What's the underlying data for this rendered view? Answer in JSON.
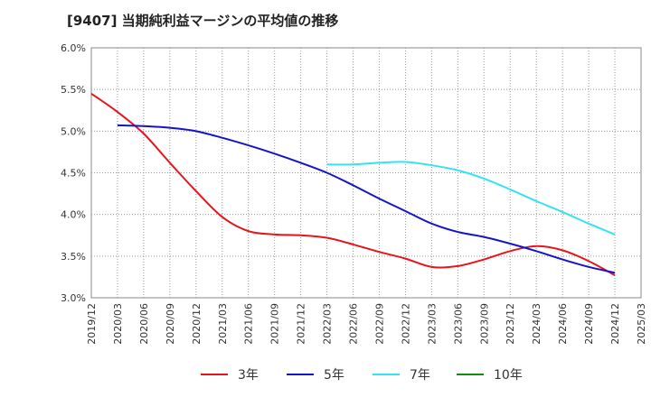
{
  "chart_data": {
    "type": "line",
    "title": "[9407]  当期純利益マージンの平均値の推移",
    "xlabel": "",
    "ylabel": "",
    "ylim": [
      3.0,
      6.0
    ],
    "y_ticks": [
      "6.0%",
      "5.5%",
      "5.0%",
      "4.5%",
      "4.0%",
      "3.5%",
      "3.0%"
    ],
    "y_tick_values": [
      6.0,
      5.5,
      5.0,
      4.5,
      4.0,
      3.5,
      3.0
    ],
    "x_ticks": [
      "2019/12",
      "2020/03",
      "2020/06",
      "2020/09",
      "2020/12",
      "2021/03",
      "2021/06",
      "2021/09",
      "2021/12",
      "2022/03",
      "2022/06",
      "2022/09",
      "2022/12",
      "2023/03",
      "2023/06",
      "2023/09",
      "2023/12",
      "2024/03",
      "2024/06",
      "2024/09",
      "2024/12",
      "2025/03"
    ],
    "grid": true,
    "legend_position": "bottom",
    "series": [
      {
        "name": "3年",
        "color": "#e8141b",
        "x": [
          "2019/12",
          "2020/03",
          "2020/06",
          "2020/09",
          "2020/12",
          "2021/03",
          "2021/06",
          "2021/09",
          "2021/12",
          "2022/03",
          "2022/06",
          "2022/09",
          "2022/12",
          "2023/03",
          "2023/06",
          "2023/09",
          "2023/12",
          "2024/03",
          "2024/06",
          "2024/09",
          "2024/12"
        ],
        "values": [
          5.45,
          5.23,
          4.97,
          4.62,
          4.28,
          3.97,
          3.8,
          3.76,
          3.75,
          3.72,
          3.64,
          3.55,
          3.47,
          3.37,
          3.38,
          3.46,
          3.56,
          3.62,
          3.57,
          3.44,
          3.27
        ]
      },
      {
        "name": "5年",
        "color": "#1515c8",
        "x": [
          "2020/03",
          "2020/06",
          "2020/09",
          "2020/12",
          "2021/03",
          "2021/06",
          "2021/09",
          "2021/12",
          "2022/03",
          "2022/06",
          "2022/09",
          "2022/12",
          "2023/03",
          "2023/06",
          "2023/09",
          "2023/12",
          "2024/03",
          "2024/06",
          "2024/09",
          "2024/12"
        ],
        "values": [
          5.07,
          5.06,
          5.04,
          5.0,
          4.92,
          4.83,
          4.73,
          4.62,
          4.5,
          4.35,
          4.19,
          4.04,
          3.89,
          3.79,
          3.73,
          3.65,
          3.56,
          3.46,
          3.37,
          3.3
        ]
      },
      {
        "name": "7年",
        "color": "#33e3f2",
        "x": [
          "2022/03",
          "2022/06",
          "2022/09",
          "2022/12",
          "2023/03",
          "2023/06",
          "2023/09",
          "2023/12",
          "2024/03",
          "2024/06",
          "2024/09",
          "2024/12"
        ],
        "values": [
          4.6,
          4.6,
          4.62,
          4.63,
          4.59,
          4.53,
          4.43,
          4.3,
          4.16,
          4.03,
          3.89,
          3.76
        ]
      },
      {
        "name": "10年",
        "color": "#138a13",
        "x": [],
        "values": []
      }
    ]
  }
}
